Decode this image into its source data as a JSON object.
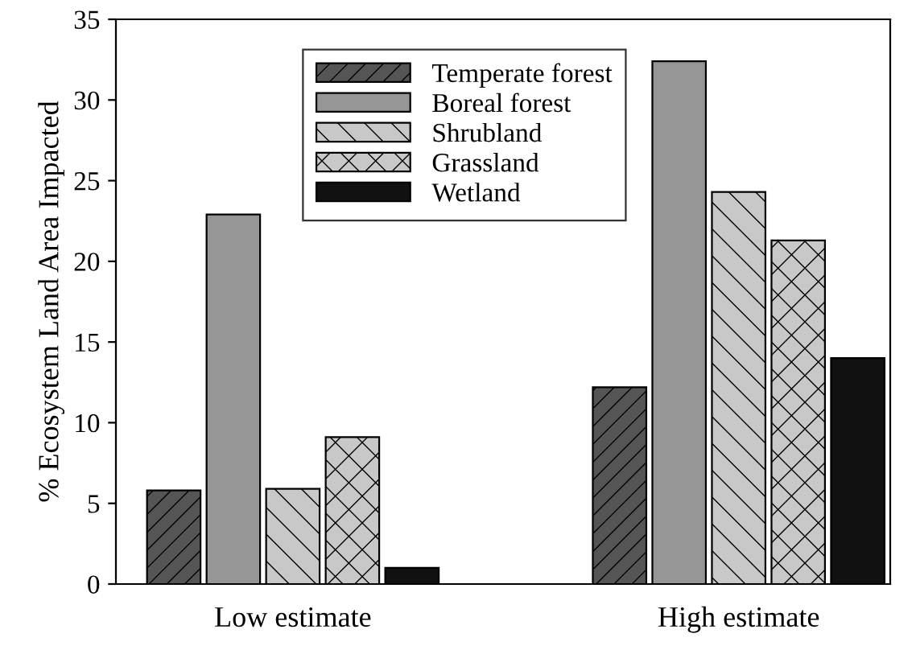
{
  "chart_data": {
    "type": "bar",
    "ylabel": "% Ecosystem Land Area Impacted",
    "categories": [
      "Low estimate",
      "High estimate"
    ],
    "series": [
      {
        "name": "Temperate forest",
        "color": "#555555",
        "values": [
          5.8,
          12.2
        ]
      },
      {
        "name": "Boreal forest",
        "color": "#969696",
        "values": [
          22.9,
          32.4
        ]
      },
      {
        "name": "Shrubland",
        "color": "#c8c8c8",
        "values": [
          5.9,
          24.3
        ]
      },
      {
        "name": "Grassland",
        "color": "#c8c8c8",
        "values": [
          9.1,
          21.3
        ]
      },
      {
        "name": "Wetland",
        "color": "#111111",
        "values": [
          1.0,
          14.0
        ]
      }
    ],
    "ylim": [
      0,
      35
    ],
    "yticks": [
      0,
      5,
      10,
      15,
      20,
      25,
      30,
      35
    ],
    "grid": false,
    "legend": "top"
  }
}
